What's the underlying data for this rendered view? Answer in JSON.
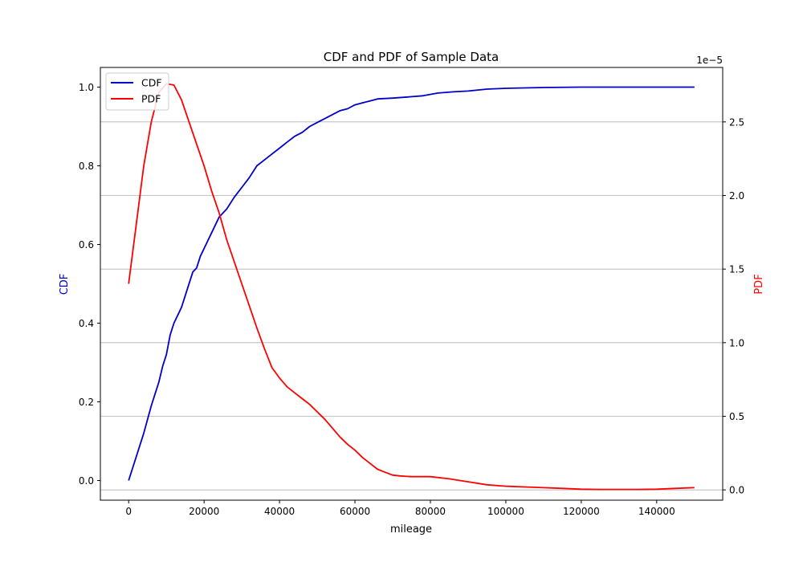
{
  "chart_data": {
    "type": "line",
    "title": "CDF and PDF of Sample Data",
    "xlabel": "mileage",
    "ylabel_left": "CDF",
    "ylabel_right": "PDF",
    "right_axis_offset_text": "1e−5",
    "xlim": [
      -7500,
      157500
    ],
    "ylim_left": [
      -0.05,
      1.05
    ],
    "ylim_right": [
      -0.07,
      2.87
    ],
    "x_ticks": [
      0,
      20000,
      40000,
      60000,
      80000,
      100000,
      120000,
      140000
    ],
    "x_tick_labels": [
      "0",
      "20000",
      "40000",
      "60000",
      "80000",
      "100000",
      "120000",
      "140000"
    ],
    "y_left_ticks": [
      0.0,
      0.2,
      0.4,
      0.6,
      0.8,
      1.0
    ],
    "y_left_tick_labels": [
      "0.0",
      "0.2",
      "0.4",
      "0.6",
      "0.8",
      "1.0"
    ],
    "y_right_ticks": [
      0.0,
      0.5,
      1.0,
      1.5,
      2.0,
      2.5
    ],
    "y_right_tick_labels": [
      "0.0",
      "0.5",
      "1.0",
      "1.5",
      "2.0",
      "2.5"
    ],
    "grid": "horizontal lines at right-axis ticks",
    "legend": {
      "placement": "top-left",
      "entries": [
        {
          "label": "CDF",
          "color": "#0000cc"
        },
        {
          "label": "PDF",
          "color": "#ff0000"
        }
      ]
    },
    "series": [
      {
        "name": "CDF",
        "axis": "left",
        "color": "#0000cc",
        "x": [
          0,
          1000,
          2000,
          3000,
          4000,
          5000,
          6000,
          7000,
          8000,
          9000,
          10000,
          11000,
          12000,
          13000,
          14000,
          15000,
          16000,
          17000,
          18000,
          19000,
          20000,
          22000,
          24000,
          26000,
          28000,
          30000,
          32000,
          34000,
          36000,
          38000,
          40000,
          42000,
          44000,
          46000,
          48000,
          50000,
          52000,
          54000,
          56000,
          58000,
          60000,
          62000,
          64000,
          66000,
          70000,
          74000,
          78000,
          82000,
          86000,
          90000,
          95000,
          100000,
          110000,
          120000,
          130000,
          140000,
          150000
        ],
        "y": [
          0.0,
          0.03,
          0.06,
          0.09,
          0.12,
          0.155,
          0.19,
          0.22,
          0.25,
          0.29,
          0.32,
          0.37,
          0.4,
          0.42,
          0.44,
          0.47,
          0.5,
          0.53,
          0.54,
          0.57,
          0.59,
          0.63,
          0.67,
          0.69,
          0.72,
          0.745,
          0.77,
          0.8,
          0.815,
          0.83,
          0.845,
          0.86,
          0.875,
          0.885,
          0.9,
          0.91,
          0.92,
          0.93,
          0.94,
          0.945,
          0.955,
          0.96,
          0.965,
          0.97,
          0.972,
          0.975,
          0.978,
          0.985,
          0.988,
          0.99,
          0.995,
          0.997,
          0.999,
          1.0,
          1.0,
          1.0,
          1.0
        ]
      },
      {
        "name": "PDF",
        "axis": "right",
        "color": "#ff0000",
        "x": [
          0,
          2000,
          4000,
          6000,
          8000,
          10000,
          12000,
          14000,
          16000,
          18000,
          20000,
          22000,
          24000,
          26000,
          28000,
          30000,
          32000,
          34000,
          36000,
          38000,
          40000,
          42000,
          44000,
          46000,
          48000,
          50000,
          52000,
          54000,
          56000,
          58000,
          60000,
          62000,
          64000,
          66000,
          68000,
          70000,
          72000,
          75000,
          80000,
          85000,
          90000,
          95000,
          100000,
          105000,
          110000,
          115000,
          120000,
          125000,
          130000,
          135000,
          140000,
          145000,
          150000
        ],
        "y": [
          1.4,
          1.8,
          2.2,
          2.5,
          2.7,
          2.76,
          2.75,
          2.65,
          2.5,
          2.35,
          2.2,
          2.03,
          1.88,
          1.7,
          1.55,
          1.4,
          1.25,
          1.1,
          0.96,
          0.83,
          0.76,
          0.7,
          0.66,
          0.62,
          0.58,
          0.53,
          0.48,
          0.42,
          0.36,
          0.31,
          0.27,
          0.22,
          0.18,
          0.14,
          0.12,
          0.1,
          0.095,
          0.09,
          0.09,
          0.075,
          0.055,
          0.035,
          0.025,
          0.02,
          0.015,
          0.01,
          0.005,
          0.003,
          0.003,
          0.003,
          0.005,
          0.01,
          0.015
        ]
      }
    ]
  }
}
